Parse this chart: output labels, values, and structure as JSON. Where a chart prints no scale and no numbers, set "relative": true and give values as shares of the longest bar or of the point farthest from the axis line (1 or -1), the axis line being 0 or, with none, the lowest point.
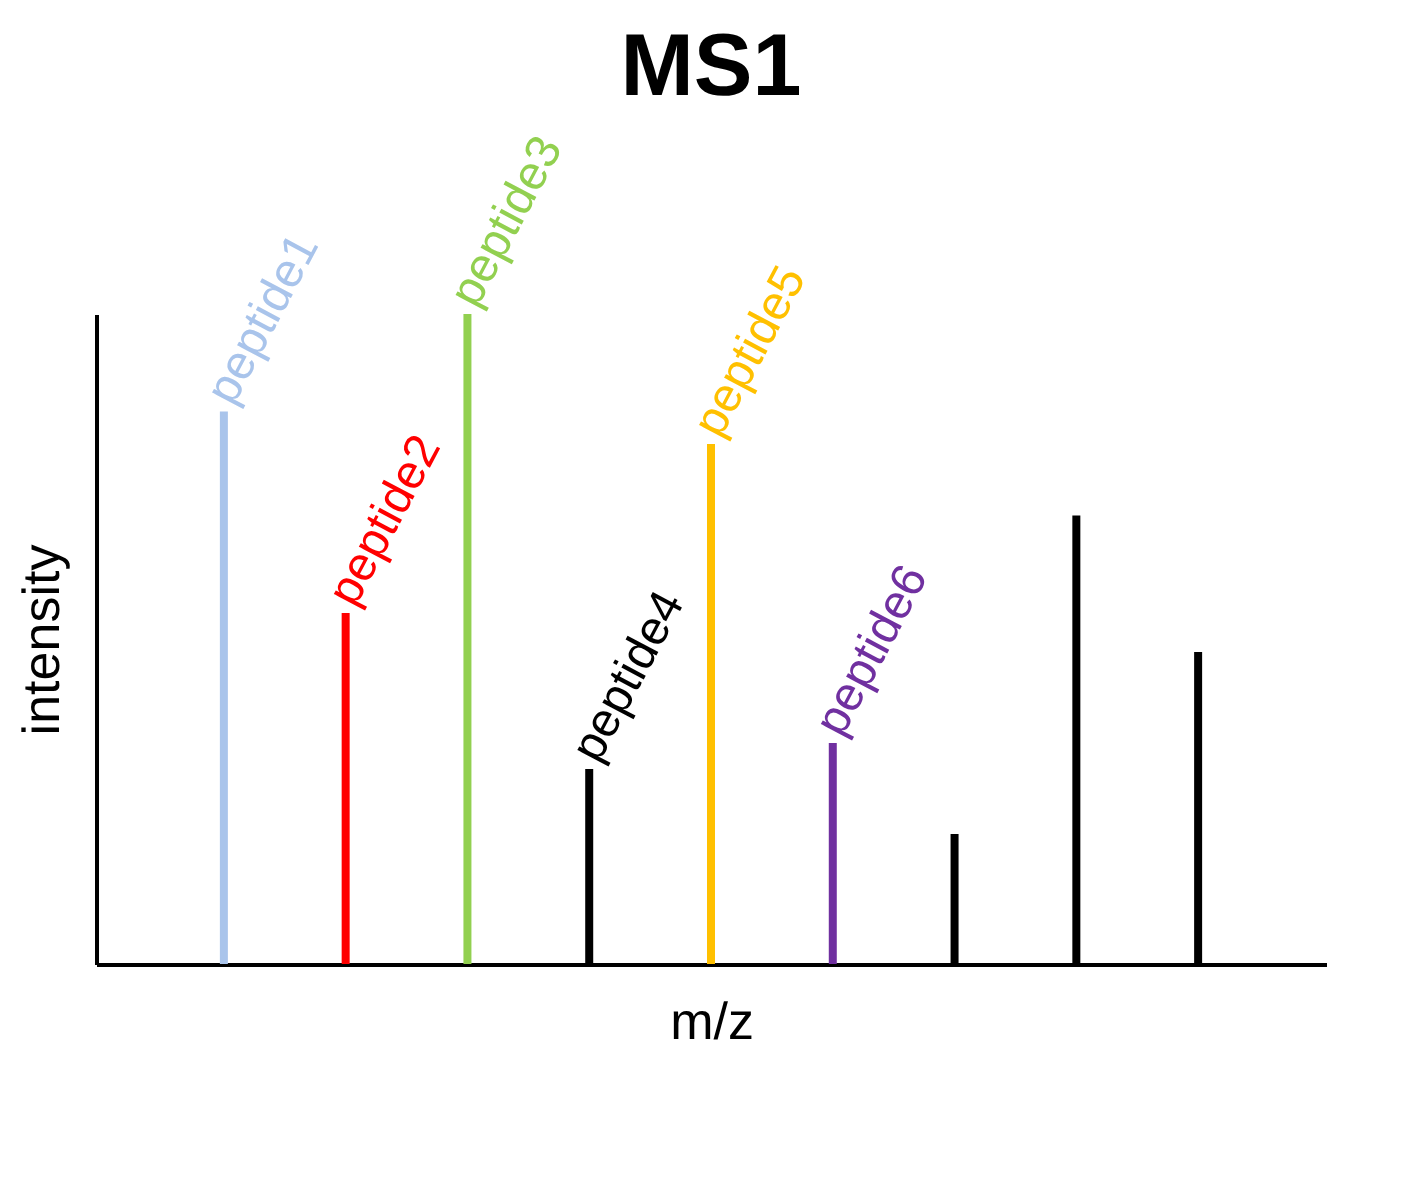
{
  "chart_data": {
    "type": "bar",
    "title": "MS1",
    "xlabel": "m/z",
    "ylabel": "intensity",
    "relative": true,
    "categories": [
      null,
      null,
      null,
      null,
      null,
      null,
      null,
      null,
      null
    ],
    "annotations": [
      "peptide1",
      "peptide2",
      "peptide3",
      "peptide4",
      "peptide5",
      "peptide6"
    ],
    "values": [
      0.85,
      0.54,
      1,
      0.3,
      0.8,
      0.34,
      0.2,
      0.69,
      0.48
    ],
    "colors": [
      "#a9c4eb",
      "#ff0000",
      "#92d050",
      "#000000",
      "#ffc000",
      "#7030a0",
      "#000000",
      "#000000",
      "#000000"
    ]
  }
}
